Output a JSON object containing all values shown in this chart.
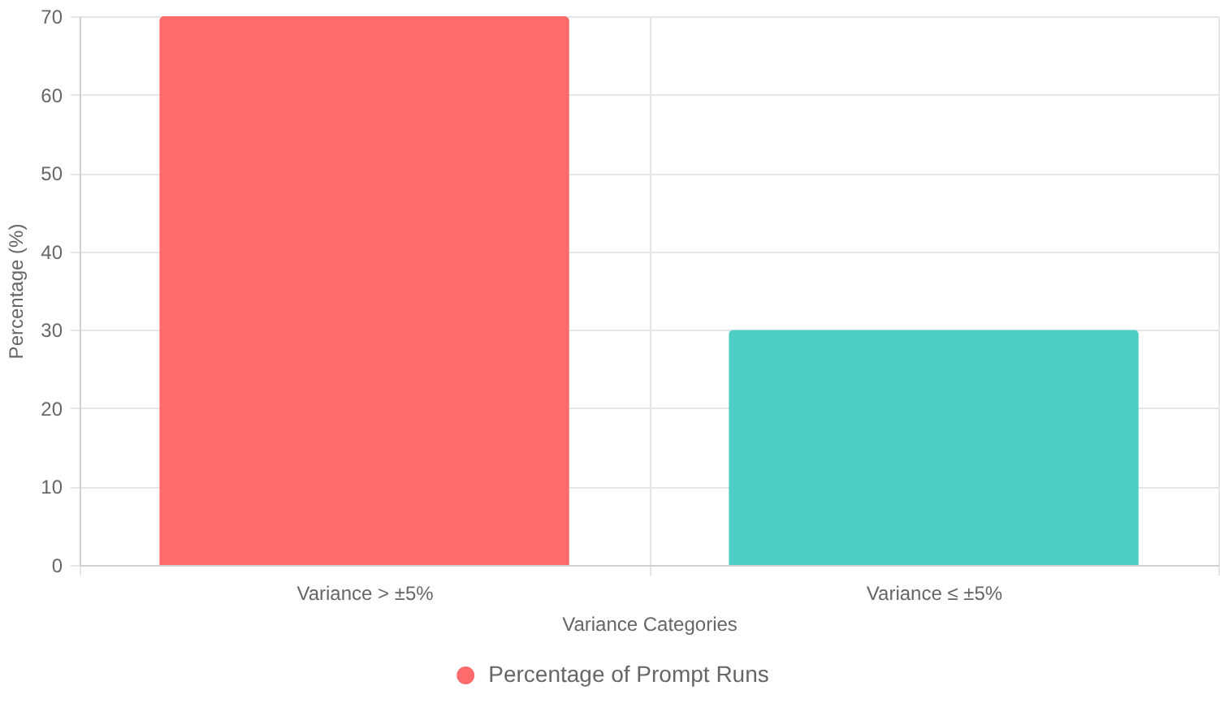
{
  "chart_data": {
    "type": "bar",
    "xlabel": "Variance Categories",
    "ylabel": "Percentage (%)",
    "categories": [
      "Variance > ±5%",
      "Variance ≤ ±5%"
    ],
    "series": [
      {
        "name": "Percentage of Prompt Runs",
        "values": [
          70,
          30
        ]
      }
    ],
    "colors": [
      "#ff6b6b",
      "#4ecdc4"
    ],
    "ylim": [
      0,
      70
    ],
    "yticks": [
      0,
      10,
      20,
      30,
      40,
      50,
      60,
      70
    ],
    "grid": true,
    "legend": "bottom"
  }
}
